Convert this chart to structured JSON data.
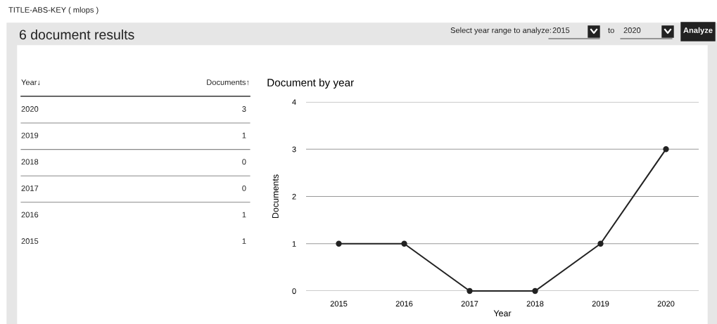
{
  "chart_data": {
    "type": "line",
    "title": "Document by year",
    "xlabel": "Year",
    "ylabel": "Documents",
    "categories": [
      "2015",
      "2016",
      "2017",
      "2018",
      "2019",
      "2020"
    ],
    "series": [
      {
        "color": "#222222",
        "values": [
          1,
          1,
          0,
          0,
          1,
          3
        ]
      }
    ],
    "ylim": [
      0,
      4
    ],
    "yticks": [
      0,
      1,
      2,
      3,
      4
    ],
    "grid": "y",
    "marker": "circle",
    "line_style": "solid",
    "legend": false,
    "annotations": [
      "TITLE-ABS-KEY ( mlops )",
      "6 document results",
      "Select year range to analyze:",
      "2015",
      "to",
      "2020",
      "Analyze",
      "Year↓",
      "Documents↑",
      "2020",
      "3",
      "2019",
      "1",
      "2018",
      "0",
      "2017",
      "0",
      "2016",
      "1",
      "2015",
      "1"
    ]
  }
}
